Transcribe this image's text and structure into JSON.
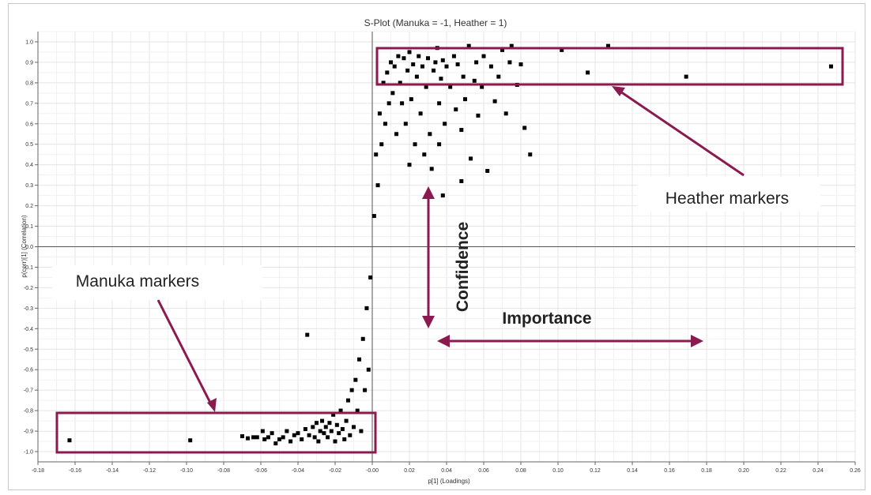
{
  "chart_data": {
    "type": "scatter",
    "title": "S-Plot (Manuka = -1, Heather = 1)",
    "xlabel": "p[1] (Loadings)",
    "ylabel": "p(corr)[1] (Correlation)",
    "xlim": [
      -0.18,
      0.26
    ],
    "ylim": [
      -1.05,
      1.05
    ],
    "x_ticks": [
      "-0.18",
      "-0.16",
      "-0.14",
      "-0.12",
      "-0.10",
      "-0.08",
      "-0.06",
      "-0.04",
      "-0.02",
      "-0.00",
      "0.02",
      "0.04",
      "0.06",
      "0.08",
      "0.10",
      "0.12",
      "0.14",
      "0.16",
      "0.18",
      "0.20",
      "0.22",
      "0.24",
      "0.26"
    ],
    "x_tick_values": [
      -0.18,
      -0.16,
      -0.14,
      -0.12,
      -0.1,
      -0.08,
      -0.06,
      -0.04,
      -0.02,
      0,
      0.02,
      0.04,
      0.06,
      0.08,
      0.1,
      0.12,
      0.14,
      0.16,
      0.18,
      0.2,
      0.22,
      0.24,
      0.26
    ],
    "y_ticks": [
      "1.0",
      "0.9",
      "0.8",
      "0.7",
      "0.6",
      "0.5",
      "0.4",
      "0.3",
      "0.2",
      "0.1",
      "0.0",
      "-0.1",
      "-0.2",
      "-0.3",
      "-0.4",
      "-0.5",
      "-0.6",
      "-0.7",
      "-0.8",
      "-0.9",
      "-1.0"
    ],
    "y_tick_values": [
      1.0,
      0.9,
      0.8,
      0.7,
      0.6,
      0.5,
      0.4,
      0.3,
      0.2,
      0.1,
      0,
      -0.1,
      -0.2,
      -0.3,
      -0.4,
      -0.5,
      -0.6,
      -0.7,
      -0.8,
      -0.9,
      -1.0
    ],
    "grid": true,
    "marker_color": "#000000",
    "accent_color": "#8b1a4f",
    "points": [
      [
        -0.163,
        -0.945
      ],
      [
        -0.098,
        -0.945
      ],
      [
        -0.07,
        -0.925
      ],
      [
        -0.067,
        -0.935
      ],
      [
        -0.064,
        -0.93
      ],
      [
        -0.062,
        -0.93
      ],
      [
        -0.059,
        -0.9
      ],
      [
        -0.058,
        -0.94
      ],
      [
        -0.056,
        -0.93
      ],
      [
        -0.054,
        -0.91
      ],
      [
        -0.052,
        -0.96
      ],
      [
        -0.05,
        -0.94
      ],
      [
        -0.048,
        -0.93
      ],
      [
        -0.046,
        -0.9
      ],
      [
        -0.044,
        -0.95
      ],
      [
        -0.042,
        -0.92
      ],
      [
        -0.04,
        -0.91
      ],
      [
        -0.038,
        -0.94
      ],
      [
        -0.036,
        -0.89
      ],
      [
        -0.035,
        -0.43
      ],
      [
        -0.034,
        -0.92
      ],
      [
        -0.032,
        -0.88
      ],
      [
        -0.031,
        -0.93
      ],
      [
        -0.03,
        -0.86
      ],
      [
        -0.029,
        -0.95
      ],
      [
        -0.028,
        -0.9
      ],
      [
        -0.027,
        -0.85
      ],
      [
        -0.026,
        -0.91
      ],
      [
        -0.025,
        -0.88
      ],
      [
        -0.024,
        -0.93
      ],
      [
        -0.023,
        -0.86
      ],
      [
        -0.022,
        -0.9
      ],
      [
        -0.021,
        -0.82
      ],
      [
        -0.02,
        -0.95
      ],
      [
        -0.019,
        -0.87
      ],
      [
        -0.018,
        -0.91
      ],
      [
        -0.017,
        -0.8
      ],
      [
        -0.016,
        -0.89
      ],
      [
        -0.015,
        -0.94
      ],
      [
        -0.014,
        -0.85
      ],
      [
        -0.013,
        -0.75
      ],
      [
        -0.012,
        -0.92
      ],
      [
        -0.011,
        -0.7
      ],
      [
        -0.01,
        -0.88
      ],
      [
        -0.009,
        -0.65
      ],
      [
        -0.008,
        -0.8
      ],
      [
        -0.007,
        -0.55
      ],
      [
        -0.006,
        -0.9
      ],
      [
        -0.005,
        -0.45
      ],
      [
        -0.004,
        -0.7
      ],
      [
        -0.003,
        -0.3
      ],
      [
        -0.002,
        -0.6
      ],
      [
        -0.001,
        -0.15
      ],
      [
        0.001,
        0.15
      ],
      [
        0.002,
        0.45
      ],
      [
        0.003,
        0.3
      ],
      [
        0.004,
        0.65
      ],
      [
        0.005,
        0.5
      ],
      [
        0.006,
        0.8
      ],
      [
        0.007,
        0.6
      ],
      [
        0.008,
        0.85
      ],
      [
        0.009,
        0.7
      ],
      [
        0.01,
        0.9
      ],
      [
        0.011,
        0.75
      ],
      [
        0.012,
        0.88
      ],
      [
        0.013,
        0.55
      ],
      [
        0.014,
        0.93
      ],
      [
        0.015,
        0.8
      ],
      [
        0.016,
        0.7
      ],
      [
        0.017,
        0.92
      ],
      [
        0.018,
        0.6
      ],
      [
        0.019,
        0.86
      ],
      [
        0.02,
        0.95
      ],
      [
        0.021,
        0.72
      ],
      [
        0.022,
        0.89
      ],
      [
        0.023,
        0.5
      ],
      [
        0.024,
        0.83
      ],
      [
        0.025,
        0.93
      ],
      [
        0.026,
        0.65
      ],
      [
        0.027,
        0.88
      ],
      [
        0.028,
        0.45
      ],
      [
        0.029,
        0.78
      ],
      [
        0.03,
        0.92
      ],
      [
        0.031,
        0.55
      ],
      [
        0.032,
        0.38
      ],
      [
        0.033,
        0.86
      ],
      [
        0.034,
        0.9
      ],
      [
        0.035,
        0.97
      ],
      [
        0.036,
        0.7
      ],
      [
        0.037,
        0.82
      ],
      [
        0.038,
        0.91
      ],
      [
        0.039,
        0.6
      ],
      [
        0.04,
        0.88
      ],
      [
        0.042,
        0.78
      ],
      [
        0.044,
        0.93
      ],
      [
        0.045,
        0.67
      ],
      [
        0.046,
        0.89
      ],
      [
        0.048,
        0.57
      ],
      [
        0.049,
        0.83
      ],
      [
        0.05,
        0.72
      ],
      [
        0.052,
        0.98
      ],
      [
        0.053,
        0.43
      ],
      [
        0.055,
        0.81
      ],
      [
        0.056,
        0.9
      ],
      [
        0.057,
        0.64
      ],
      [
        0.059,
        0.78
      ],
      [
        0.06,
        0.93
      ],
      [
        0.062,
        0.37
      ],
      [
        0.064,
        0.88
      ],
      [
        0.066,
        0.71
      ],
      [
        0.068,
        0.83
      ],
      [
        0.07,
        0.96
      ],
      [
        0.072,
        0.65
      ],
      [
        0.074,
        0.9
      ],
      [
        0.075,
        0.98
      ],
      [
        0.078,
        0.79
      ],
      [
        0.08,
        0.89
      ],
      [
        0.082,
        0.58
      ],
      [
        0.085,
        0.45
      ],
      [
        0.102,
        0.96
      ],
      [
        0.116,
        0.85
      ],
      [
        0.127,
        0.98
      ],
      [
        0.169,
        0.83
      ],
      [
        0.247,
        0.88
      ],
      [
        0.048,
        0.32
      ],
      [
        0.038,
        0.25
      ],
      [
        0.036,
        0.5
      ],
      [
        0.03,
        0.25
      ],
      [
        0.02,
        0.4
      ]
    ]
  },
  "annotations": {
    "heather_label": "Heather markers",
    "manuka_label": "Manuka markers",
    "confidence_label": "Confidence",
    "importance_label": "Importance"
  }
}
